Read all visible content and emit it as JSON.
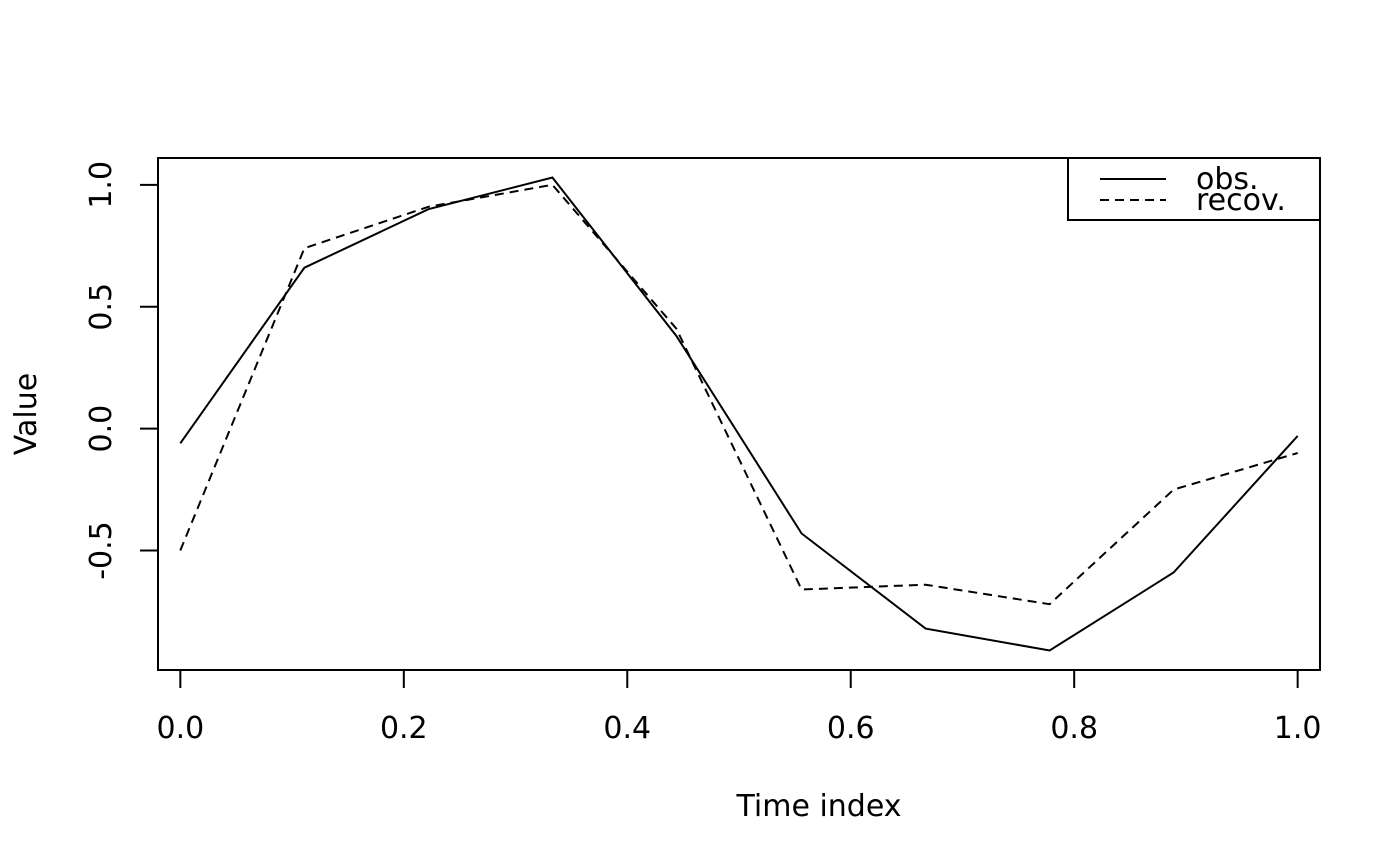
{
  "chart_data": {
    "type": "line",
    "xlabel": "Time index",
    "ylabel": "Value",
    "xlim": [
      -0.02,
      1.02
    ],
    "ylim": [
      -0.99,
      1.11
    ],
    "x_ticks": [
      0.0,
      0.2,
      0.4,
      0.6,
      0.8,
      1.0
    ],
    "x_tick_labels": [
      "0.0",
      "0.2",
      "0.4",
      "0.6",
      "0.8",
      "1.0"
    ],
    "y_ticks": [
      1.0,
      0.5,
      0.0,
      -0.5
    ],
    "y_tick_labels": [
      "1.0",
      "0.5",
      "0.0",
      "-0.5"
    ],
    "grid": false,
    "legend": {
      "placement": "top-right",
      "entries": [
        "obs.",
        "recov."
      ]
    },
    "x": [
      0.0,
      0.111,
      0.222,
      0.333,
      0.444,
      0.556,
      0.667,
      0.778,
      0.889,
      1.0
    ],
    "series": [
      {
        "name": "obs.",
        "style": "solid",
        "color": "#000000",
        "values": [
          -0.06,
          0.66,
          0.9,
          1.03,
          0.38,
          -0.43,
          -0.82,
          -0.91,
          -0.59,
          -0.03
        ]
      },
      {
        "name": "recov.",
        "style": "dashed",
        "color": "#000000",
        "values": [
          -0.5,
          0.74,
          0.91,
          1.0,
          0.41,
          -0.66,
          -0.64,
          -0.72,
          -0.25,
          -0.1
        ]
      }
    ]
  }
}
